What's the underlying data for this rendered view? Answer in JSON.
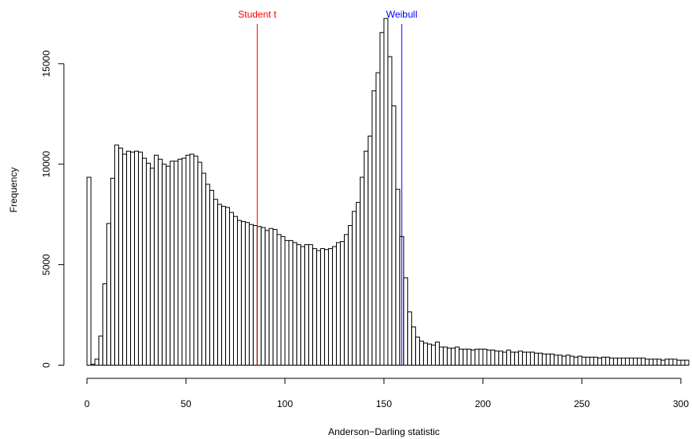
{
  "chart_data": {
    "type": "bar",
    "subtype": "histogram",
    "title": "",
    "xlabel": "Anderson−Darling statistic",
    "ylabel": "Frequency",
    "xlim": [
      0,
      300
    ],
    "ylim": [
      0,
      17500
    ],
    "bin_width": 2,
    "x_ticks": [
      0,
      50,
      100,
      150,
      200,
      250,
      300
    ],
    "x_tick_labels": [
      "0",
      "50",
      "100",
      "150",
      "200",
      "250",
      "300"
    ],
    "y_ticks": [
      0,
      5000,
      10000,
      15000
    ],
    "y_tick_labels": [
      "0",
      "5000",
      "10000",
      "15000"
    ],
    "grid": false,
    "values": [
      9350,
      50,
      300,
      1450,
      4050,
      7050,
      9300,
      10950,
      10800,
      10500,
      10650,
      10600,
      10650,
      10600,
      10300,
      10050,
      9800,
      10450,
      10250,
      10000,
      9900,
      10150,
      10150,
      10250,
      10300,
      10450,
      10500,
      10400,
      10100,
      9550,
      9000,
      8700,
      8250,
      8000,
      7900,
      7850,
      7600,
      7400,
      7200,
      7150,
      7100,
      7000,
      6950,
      6900,
      6850,
      6700,
      6800,
      6750,
      6500,
      6400,
      6200,
      6200,
      6100,
      6000,
      5900,
      6000,
      6000,
      5800,
      5700,
      5800,
      5750,
      5800,
      5900,
      6100,
      6150,
      6500,
      6950,
      7650,
      8100,
      9350,
      10650,
      11400,
      13650,
      14550,
      16550,
      17250,
      15350,
      12900,
      8750,
      6400,
      4350,
      2650,
      1900,
      1400,
      1200,
      1100,
      1050,
      1000,
      1150,
      900,
      900,
      850,
      850,
      900,
      800,
      800,
      800,
      750,
      800,
      800,
      800,
      750,
      750,
      700,
      700,
      650,
      750,
      650,
      650,
      700,
      650,
      650,
      650,
      600,
      600,
      550,
      550,
      550,
      500,
      500,
      450,
      500,
      450,
      400,
      450,
      400,
      400,
      400,
      400,
      350,
      400,
      400,
      350,
      350,
      350,
      350,
      350,
      350,
      350,
      350,
      350,
      300,
      300,
      300,
      300,
      250,
      300,
      300,
      300,
      250,
      250,
      250
    ]
  },
  "reference_lines": [
    {
      "label": "Student t",
      "x": 86,
      "color": "#ff0000"
    },
    {
      "label": "Weibull",
      "x": 159,
      "color": "#0000ff"
    }
  ]
}
